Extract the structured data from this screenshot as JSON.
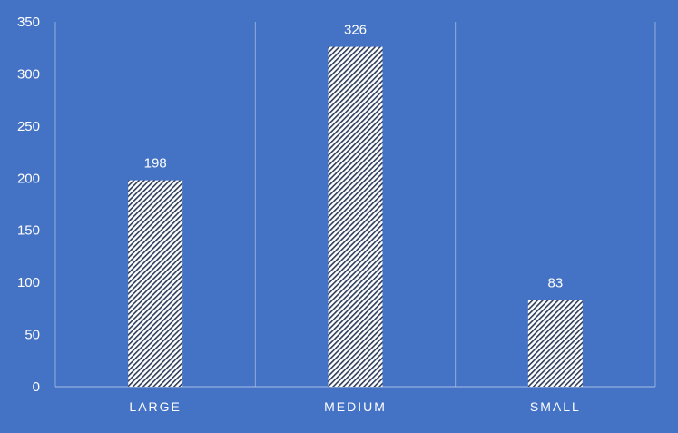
{
  "colors": {
    "background": "#4472C4",
    "bar_fill": "#FFFFFF",
    "bar_hatch": "#2F3E5C",
    "grid": "#8FACDF",
    "axis": "#A9C0E8",
    "text": "#FFFFFF"
  },
  "chart_data": {
    "type": "bar",
    "title": "",
    "xlabel": "",
    "ylabel": "",
    "categories": [
      "LARGE",
      "MEDIUM",
      "SMALL"
    ],
    "values": [
      198,
      326,
      83
    ],
    "ylim": [
      0,
      350
    ],
    "yticks": [
      0,
      50,
      100,
      150,
      200,
      250,
      300,
      350
    ],
    "grid": "vertical category separators",
    "legend": "none",
    "bar_pattern": "diagonal hatch",
    "data_labels": true
  }
}
